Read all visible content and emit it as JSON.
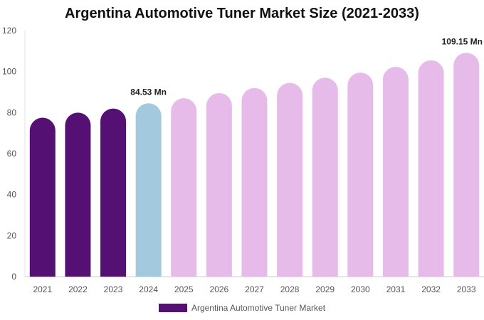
{
  "chart_data": {
    "type": "bar",
    "title": "Argentina Automotive Tuner Market Size (2021-2033)",
    "xlabel": "",
    "ylabel": "",
    "categories": [
      "2021",
      "2022",
      "2023",
      "2024",
      "2025",
      "2026",
      "2027",
      "2028",
      "2029",
      "2030",
      "2031",
      "2032",
      "2033"
    ],
    "series": [
      {
        "name": "Argentina Automotive Tuner Market",
        "values": [
          77.5,
          80.0,
          82.0,
          84.53,
          87.0,
          89.5,
          92.0,
          94.5,
          97.0,
          99.5,
          102.3,
          105.5,
          109.15
        ]
      }
    ],
    "ylim": [
      0,
      120
    ],
    "yticks": [
      0,
      20,
      40,
      60,
      80,
      100,
      120
    ],
    "grid": false,
    "legend_position": "bottom",
    "data_labels": [
      {
        "category": "2024",
        "text": "84.53 Mn"
      },
      {
        "category": "2033",
        "text": "109.15 Mn"
      }
    ],
    "bar_colors": {
      "historical": "#541173",
      "base_year": "#a2c9de",
      "forecast": "#e6bbe9"
    },
    "legend_color": "#541173"
  }
}
